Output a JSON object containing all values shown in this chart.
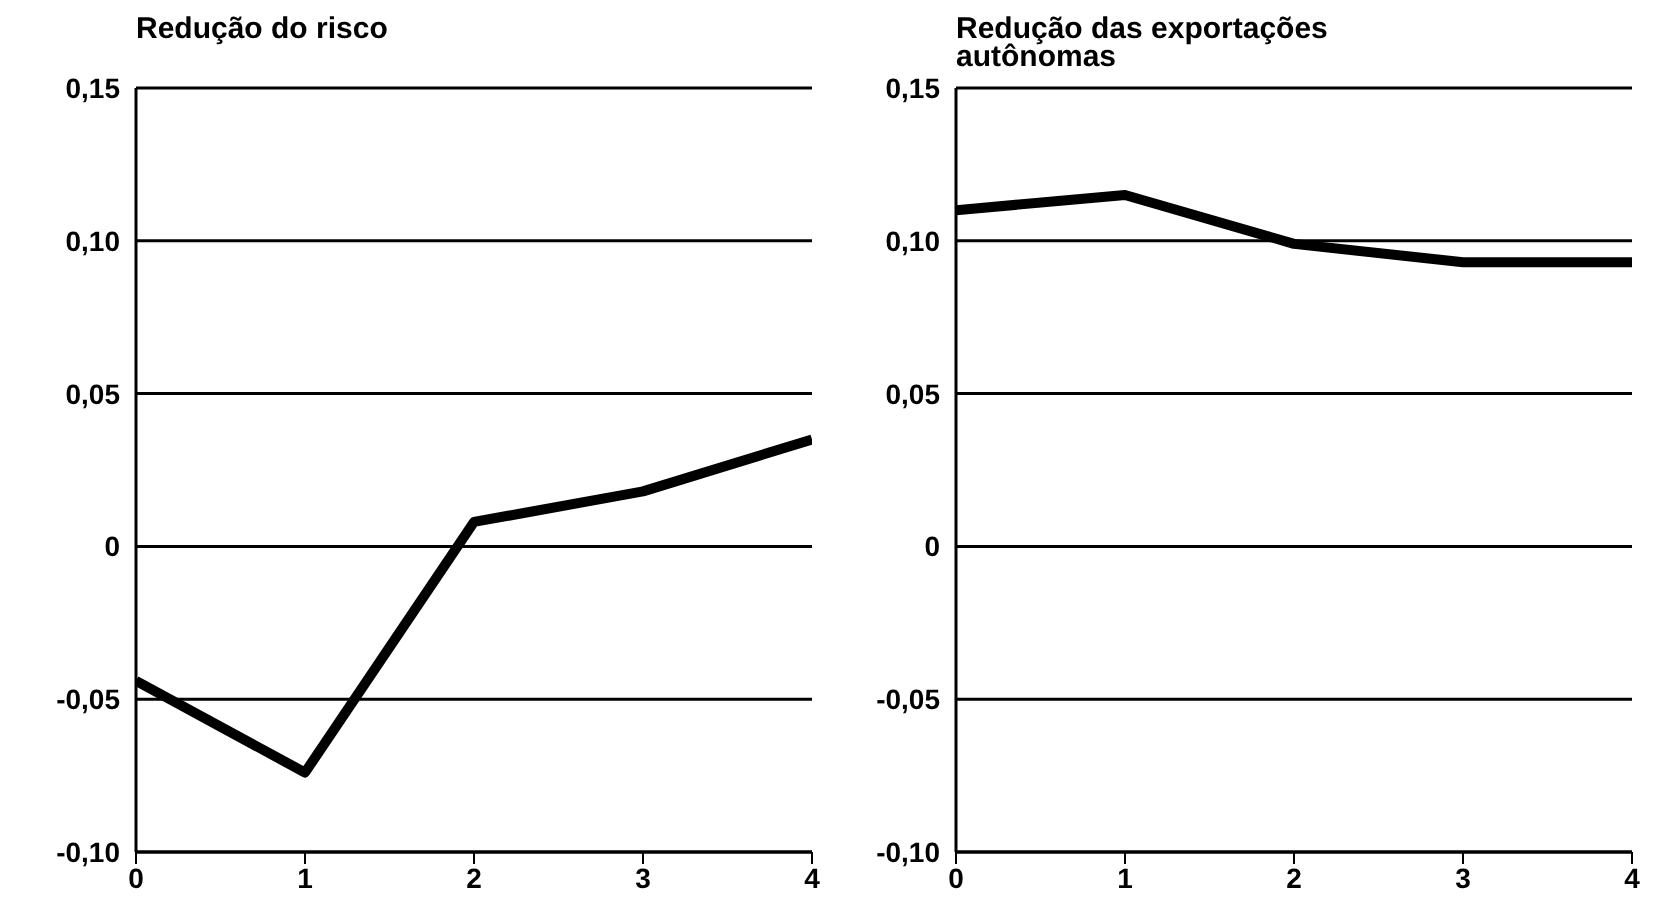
{
  "chart_data": [
    {
      "type": "line",
      "title": "Redução do risco",
      "x": [
        0,
        1,
        2,
        3,
        4
      ],
      "series": [
        {
          "color": "#000000",
          "values": [
            -0.044,
            -0.074,
            0.008,
            0.018,
            0.035
          ]
        }
      ],
      "xlim": [
        0,
        4
      ],
      "xticks": [
        0,
        1,
        2,
        3,
        4
      ],
      "ylim": [
        -0.1,
        0.15
      ],
      "yticks": [
        {
          "value": -0.1,
          "label": "-0,10"
        },
        {
          "value": -0.05,
          "label": "-0,05"
        },
        {
          "value": 0,
          "label": "0"
        },
        {
          "value": 0.05,
          "label": "0,05"
        },
        {
          "value": 0.1,
          "label": "0,10"
        },
        {
          "value": 0.15,
          "label": "0,15"
        }
      ],
      "grid": "y",
      "legend": false,
      "marker": "none",
      "line_style": "solid"
    },
    {
      "type": "line",
      "title": "Redução das exportações autônomas",
      "x": [
        0,
        1,
        2,
        3,
        4
      ],
      "series": [
        {
          "color": "#000000",
          "values": [
            0.11,
            0.115,
            0.099,
            0.093,
            0.093
          ]
        }
      ],
      "xlim": [
        0,
        4
      ],
      "xticks": [
        0,
        1,
        2,
        3,
        4
      ],
      "ylim": [
        -0.1,
        0.15
      ],
      "yticks": [
        {
          "value": -0.1,
          "label": "-0,10"
        },
        {
          "value": -0.05,
          "label": "-0,05"
        },
        {
          "value": 0,
          "label": "0"
        },
        {
          "value": 0.05,
          "label": "0,05"
        },
        {
          "value": 0.1,
          "label": "0,10"
        },
        {
          "value": 0.15,
          "label": "0,15"
        }
      ],
      "grid": "y",
      "legend": false,
      "marker": "none",
      "line_style": "solid"
    }
  ]
}
